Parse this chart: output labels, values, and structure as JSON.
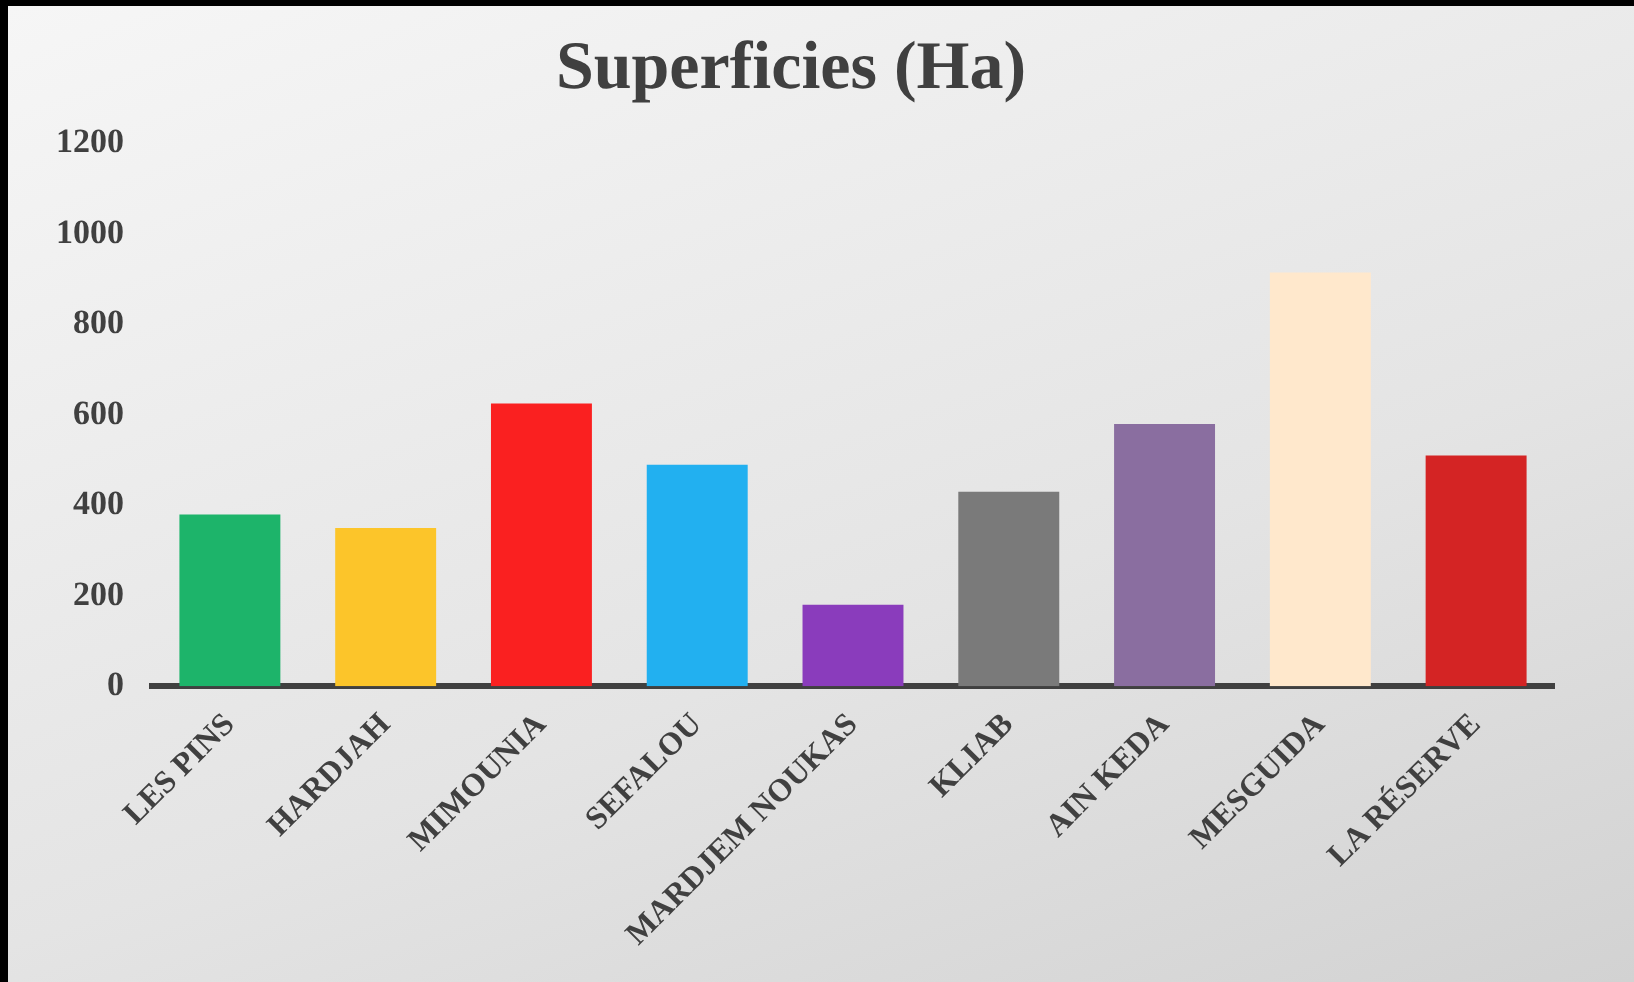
{
  "chart_data": {
    "type": "bar",
    "title": "Superficies (Ha)",
    "categories": [
      "LES PINS",
      "HARDJAH",
      "MIMOUNIA",
      "SEFALOU",
      "MARDJEM NOUKAS",
      "KLIAB",
      "AIN KEDA",
      "MESGUIDA",
      "LA RÉSERVE"
    ],
    "values": [
      380,
      350,
      625,
      490,
      180,
      430,
      580,
      915,
      510
    ],
    "colors": [
      "#1db46a",
      "#fcc52a",
      "#fa2020",
      "#22b0f0",
      "#8a3cbc",
      "#7a7a7a",
      "#8a6ea0",
      "#ffe8cc",
      "#d42424"
    ],
    "ylim": [
      0,
      1200
    ],
    "yticks": [
      0,
      200,
      400,
      600,
      800,
      1000,
      1200
    ],
    "grid": false,
    "legend": false
  }
}
